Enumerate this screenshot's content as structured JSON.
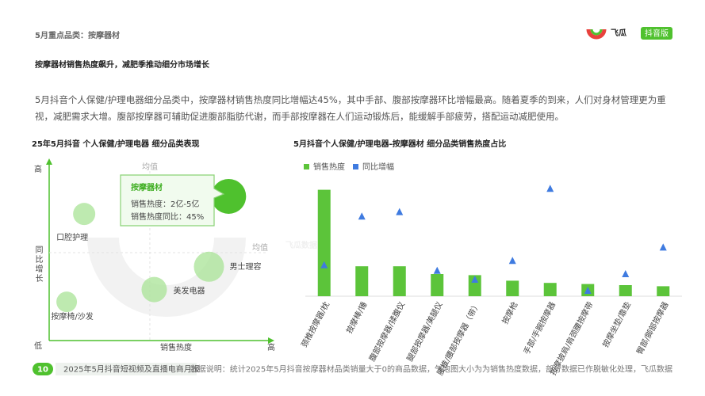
{
  "header": {
    "section": "5月重点品类：按摩器材",
    "title": "按摩器材销售热度飙升，减肥季推动细分市场增长",
    "logo": "飞瓜",
    "logo_badge": "抖音版"
  },
  "paragraph": "5月抖音个人保健/护理电器细分品类中，按摩器材销售热度同比增幅达45%，其中手部、腹部按摩器环比增幅最高。随着夏季的到来，人们对身材管理更为重视，减肥需求大增。腹部按摩器可辅助促进腹部脂肪代谢，而手部按摩器在人们运动锻炼后，能缓解手部疲劳，搭配运动减肥使用。",
  "watermark": "飞瓜数据",
  "chart_data": [
    {
      "type": "bubble",
      "title": "25年5月抖音 个人保健/护理电器 细分品类表现",
      "x_label": "销售热度",
      "y_label": "同比增长",
      "y_high": "高",
      "x_high": "高",
      "origin_label": "低",
      "xlim": [
        0,
        100
      ],
      "ylim": [
        0,
        100
      ],
      "x_mean": 46,
      "y_mean": 50,
      "mean_label": "均值",
      "categories": [
        "口腔护理",
        "男士理容",
        "美发电器",
        "按摩椅/沙发",
        "按摩器材"
      ],
      "x": [
        16,
        73,
        48,
        8,
        82
      ],
      "values": [
        72,
        42,
        29,
        22,
        82
      ],
      "sizes": [
        14,
        19,
        16,
        13,
        22
      ],
      "color": "#a8e396",
      "highlight_color": "#4fc12e",
      "callout": {
        "name": "按摩器材",
        "line1": "销售热度：2亿-5亿",
        "line2": "销售热度同比：45%"
      }
    },
    {
      "type": "bar",
      "title": "5月抖音个人保健/护理电器-按摩器材 细分品类销售热度占比",
      "categories": [
        "颈椎按摩器/枕",
        "按摩棒/锤",
        "腹部按摩器/揉腹仪",
        "腿部按摩器/美腿仪",
        "腰椎/腰部按摩器（带）",
        "按摩枪",
        "手部/手腕按摩器",
        "按摩披肩/肩颈腰按摩带",
        "按摩坐垫/靠垫",
        "臀部/脚部按摩器"
      ],
      "ylim": [
        0,
        100
      ],
      "y2lim": [
        0,
        100
      ],
      "series": [
        {
          "name": "销售热度",
          "color": "#5cc43a",
          "values": [
            96,
            27,
            27,
            20,
            19,
            14,
            12,
            11,
            10,
            9
          ]
        },
        {
          "name": "同比增幅",
          "color": "#3f7be0",
          "axis": "y2",
          "values": [
            28,
            72,
            76,
            23,
            15,
            32,
            97,
            5,
            20,
            44
          ]
        }
      ]
    }
  ],
  "footer": {
    "page": "10",
    "report": "2025年5月抖音短视频及直播电商月报",
    "note": "数据说明：统计2025年5月抖音按摩器材品类销量大于0的商品数据，气泡图大小为为销售热度数据，部分数据已作脱敏化处理，飞瓜数据"
  }
}
